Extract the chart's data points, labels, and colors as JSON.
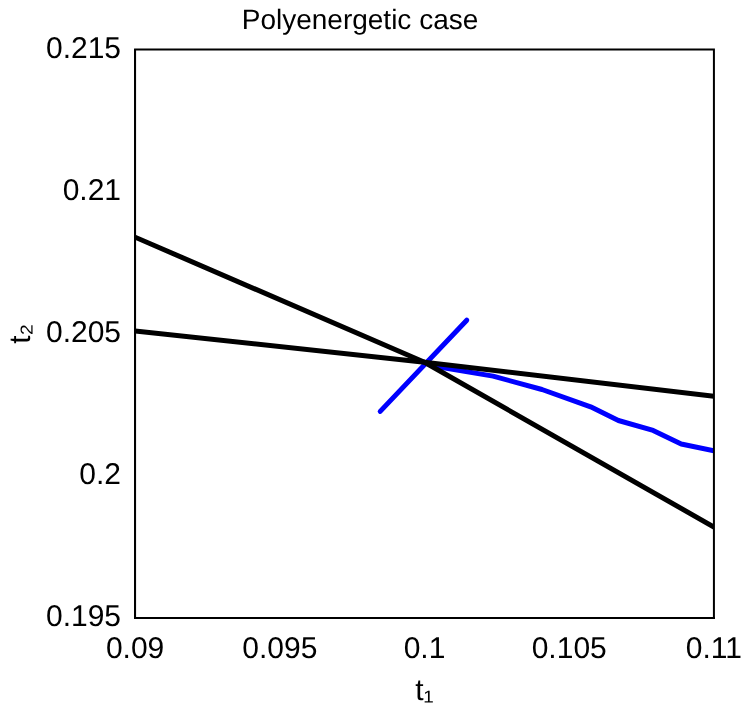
{
  "chart_data": {
    "type": "line",
    "title": "Polyenergetic case",
    "xlabel": "t₁",
    "ylabel": "t₂",
    "xlim": [
      0.09,
      0.11
    ],
    "xticks": [
      0.09,
      0.095,
      0.1,
      0.105,
      0.11
    ],
    "ylim": [
      0.195,
      0.215
    ],
    "yticks": [
      0.195,
      0.2,
      0.205,
      0.21,
      0.215
    ],
    "grid": false,
    "legend": false,
    "marker": "none",
    "line_style": "solid",
    "series": [
      {
        "color": "#000000",
        "x": [
          0.09,
          0.1,
          0.11
        ],
        "values": [
          0.2084,
          0.204,
          0.1982
        ]
      },
      {
        "color": "#000000",
        "x": [
          0.09,
          0.1,
          0.11
        ],
        "values": [
          0.2051,
          0.204,
          0.2028
        ]
      },
      {
        "color": "#0000ff",
        "x": [
          0.09847,
          0.10146
        ],
        "values": [
          0.20227,
          0.20548
        ]
      },
      {
        "color": "#0000ff",
        "x": [
          0.1,
          0.1003,
          0.10237,
          0.10406,
          0.10574,
          0.1067,
          0.1079,
          0.10887,
          0.11
        ],
        "values": [
          0.204,
          0.20387,
          0.20351,
          0.20304,
          0.20243,
          0.20195,
          0.2016,
          0.20112,
          0.20088
        ]
      }
    ]
  }
}
